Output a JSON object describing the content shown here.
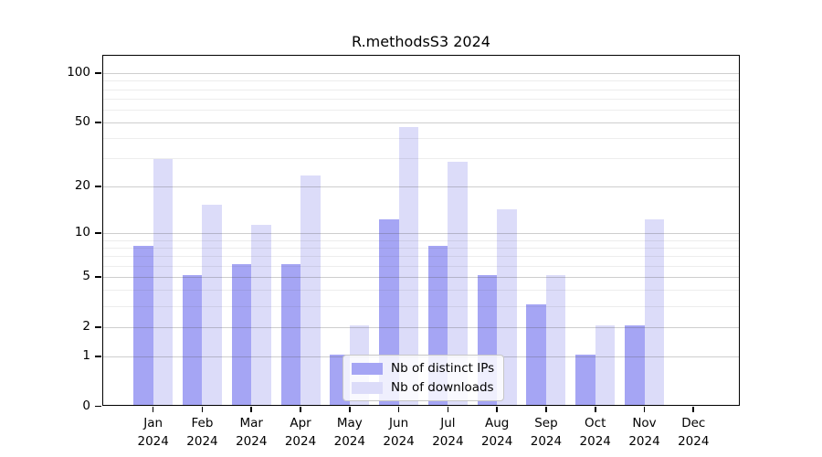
{
  "chart_data": {
    "type": "bar",
    "title": "R.methodsS3 2024",
    "year": "2024",
    "categories": [
      "Jan",
      "Feb",
      "Mar",
      "Apr",
      "May",
      "Jun",
      "Jul",
      "Aug",
      "Sep",
      "Oct",
      "Nov",
      "Dec"
    ],
    "series": [
      {
        "name": "Nb of distinct IPs",
        "color": "#a5a5f4",
        "values": [
          8,
          5,
          6,
          6,
          1,
          12,
          8,
          5,
          3,
          1,
          2,
          0
        ]
      },
      {
        "name": "Nb of downloads",
        "color": "#dcdcf9",
        "values": [
          29,
          15,
          11,
          23,
          2,
          46,
          28,
          14,
          5,
          2,
          12,
          0
        ]
      }
    ],
    "yscale": "log1p",
    "ylim": [
      0,
      125
    ],
    "yticks": [
      0,
      1,
      2,
      5,
      10,
      20,
      50,
      100
    ],
    "ytick_labels": [
      "0",
      "1",
      "2",
      "5",
      "10",
      "20",
      "50",
      "100"
    ],
    "minor_grid_values": [
      3,
      4,
      6,
      7,
      8,
      9,
      30,
      40,
      60,
      70,
      80,
      90
    ],
    "grid": true,
    "legend_position": "bottom-center",
    "axis_color": "#000000",
    "background_color": "#ffffff"
  }
}
